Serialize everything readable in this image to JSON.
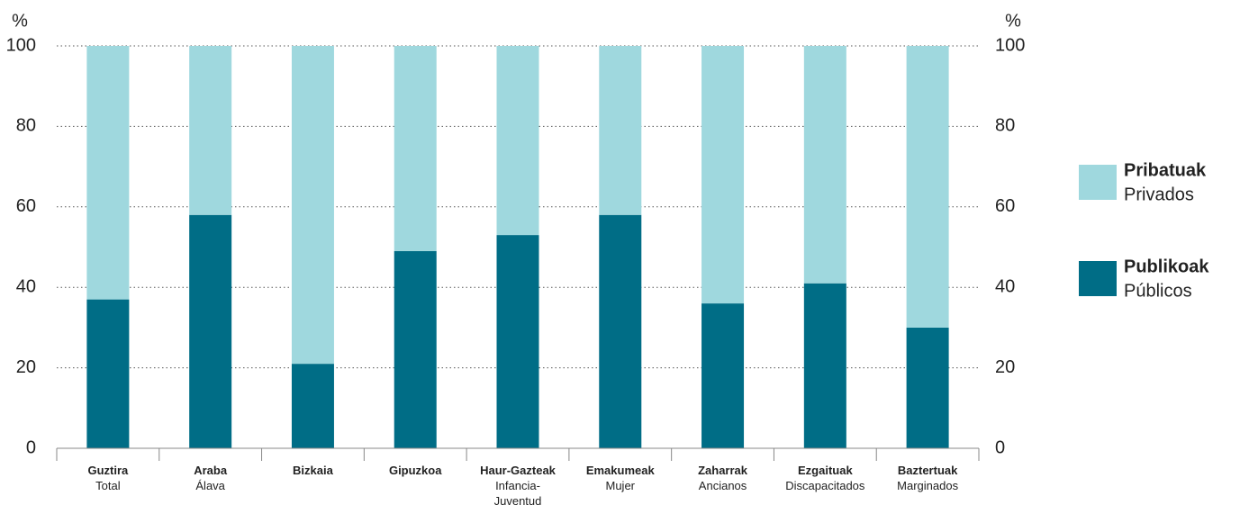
{
  "chart_data": {
    "type": "stacked_bar",
    "categories": [
      "Guztira",
      "Araba",
      "Bizkaia",
      "Gipuzkoa",
      "Haur-Gazteak",
      "Emakumeak",
      "Zaharrak",
      "Ezgaituak",
      "Baztertuak"
    ],
    "category_subtitles": [
      "Total",
      "Álava",
      null,
      null,
      "Infancia-Juventud",
      "Mujer",
      "Ancianos",
      "Discapacitados",
      "Marginados"
    ],
    "series": [
      {
        "name": "Publikoak",
        "subtitle": "Públicos",
        "color": "#006d86",
        "values": [
          37,
          58,
          21,
          49,
          53,
          58,
          36,
          41,
          30
        ]
      },
      {
        "name": "Pribatuak",
        "subtitle": "Privados",
        "color": "#9fd8de",
        "values": [
          63,
          42,
          79,
          51,
          47,
          42,
          64,
          59,
          70
        ]
      }
    ],
    "ylabel": "%",
    "y2label": "%",
    "ylim": [
      0,
      100
    ],
    "yticks": [
      0,
      20,
      40,
      60,
      80,
      100
    ],
    "y2lim": [
      0,
      100
    ],
    "y2ticks": [
      0,
      20,
      40,
      60,
      80,
      100
    ],
    "grid": true
  }
}
